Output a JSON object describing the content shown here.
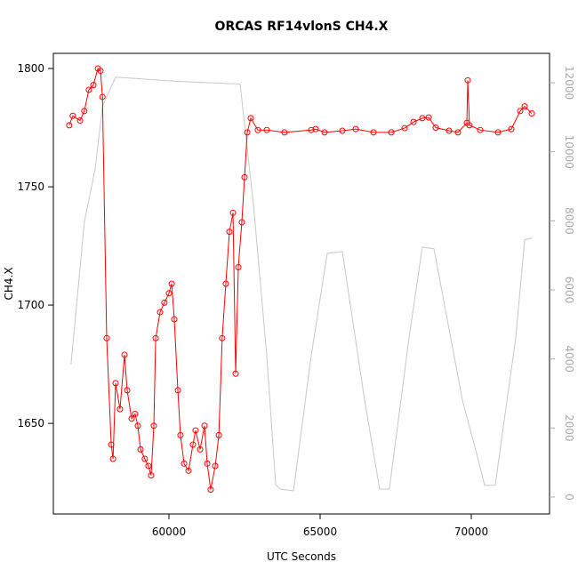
{
  "chart_data": {
    "type": "line",
    "title": "ORCAS RF14vlonS CH4.X",
    "x_label": "UTC Seconds",
    "y_label": "CH4.X",
    "xlim": [
      56176,
      72588
    ],
    "ylim": [
      1611.7,
      1806.4
    ],
    "y2lim": [
      -490,
      12850
    ],
    "xticks": [
      60000,
      65000,
      70000
    ],
    "yticks": [
      1650,
      1700,
      1750,
      1800
    ],
    "y2ticks": [
      0,
      2000,
      4000,
      6000,
      8000,
      10000,
      12000
    ],
    "series": [
      {
        "color": "#ff0000",
        "marker": "circle",
        "x": [
          56700,
          56820,
          57060,
          57200,
          57350,
          57500,
          57650,
          57735,
          57800,
          57940,
          58090,
          58150,
          58235,
          58380,
          58530,
          58617,
          58765,
          58880,
          58970,
          59060,
          59200,
          59320,
          59410,
          59500,
          59560,
          59706,
          59850,
          60000,
          60090,
          60176,
          60294,
          60380,
          60500,
          60647,
          60794,
          60880,
          61030,
          61176,
          61265,
          61380,
          61530,
          61650,
          61760,
          61880,
          62000,
          62118,
          62206,
          62294,
          62410,
          62500,
          62590,
          62706,
          62940,
          63235,
          63820,
          64706,
          64853,
          65147,
          65735,
          66176,
          66765,
          67353,
          67795,
          68090,
          68382,
          68590,
          68823,
          69265,
          69560,
          69853,
          69882,
          69940,
          70294,
          70882,
          71323,
          71617,
          71765,
          72000
        ],
        "values": [
          1776,
          1780,
          1778,
          1782,
          1791,
          1793,
          1800,
          1799,
          1788,
          1686,
          1641,
          1635,
          1667,
          1656,
          1679,
          1664,
          1652,
          1654,
          1649,
          1639,
          1635,
          1632,
          1628,
          1649,
          1686,
          1697,
          1701,
          1705,
          1709,
          1694,
          1664,
          1645,
          1633,
          1630,
          1641,
          1647,
          1639,
          1649,
          1633,
          1622,
          1632,
          1645,
          1686,
          1709,
          1731,
          1739,
          1671,
          1716,
          1735,
          1754,
          1773,
          1779,
          1774,
          1774,
          1773,
          1774,
          1774.4,
          1773,
          1773.7,
          1774.4,
          1773,
          1773,
          1774.8,
          1777.4,
          1779,
          1779.3,
          1775,
          1773.7,
          1773,
          1777,
          1795,
          1776,
          1774,
          1773,
          1774.4,
          1782,
          1784,
          1781
        ]
      },
      {
        "color": "#c8c8c8",
        "axis": "y2",
        "x": [
          56760,
          57200,
          57560,
          57800,
          58235,
          60294,
          62353,
          62794,
          63235,
          63530,
          63676,
          64118,
          64706,
          65235,
          65735,
          66470,
          66970,
          67290,
          67940,
          68380,
          68765,
          69706,
          70176,
          70440,
          70790,
          71470,
          71765,
          72000
        ],
        "values": [
          3840,
          7960,
          9510,
          11310,
          12160,
          12040,
          11960,
          8480,
          4100,
          360,
          230,
          180,
          4100,
          7060,
          7110,
          2810,
          230,
          230,
          4610,
          7240,
          7190,
          2810,
          1260,
          340,
          340,
          4610,
          7450,
          7500
        ]
      }
    ]
  }
}
